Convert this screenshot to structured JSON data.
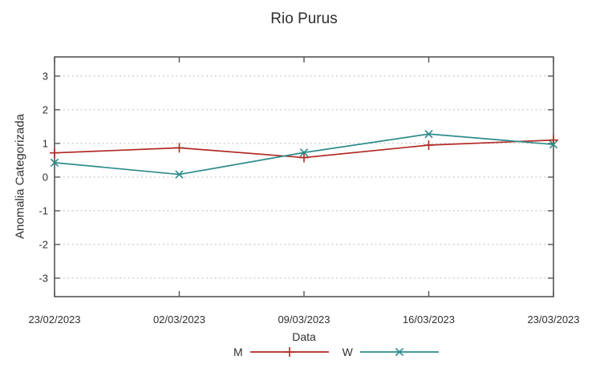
{
  "chart_data": {
    "type": "line",
    "title": "Rio Purus",
    "xlabel": "Data",
    "ylabel": "Anomalia Categorizada",
    "x": [
      "23/02/2023",
      "02/03/2023",
      "09/03/2023",
      "16/03/2023",
      "23/03/2023"
    ],
    "y_ticks": [
      3,
      2,
      1,
      0,
      -1,
      -2,
      -3
    ],
    "ylim": [
      -3.55,
      3.57
    ],
    "grid": "horizontal-dotted",
    "legend_position": "bottom-center-below-xlabel",
    "axis_color": "#555555",
    "grid_color": "#bcbcbc",
    "text_color": "#303030",
    "series": [
      {
        "name": "M",
        "color": "#b22a25",
        "marker": "plus",
        "values": [
          0.72,
          0.87,
          0.58,
          0.95,
          1.1
        ]
      },
      {
        "name": "W",
        "color": "#2e8b8b",
        "marker": "cross",
        "values": [
          0.43,
          0.08,
          0.73,
          1.28,
          0.97
        ]
      }
    ]
  }
}
